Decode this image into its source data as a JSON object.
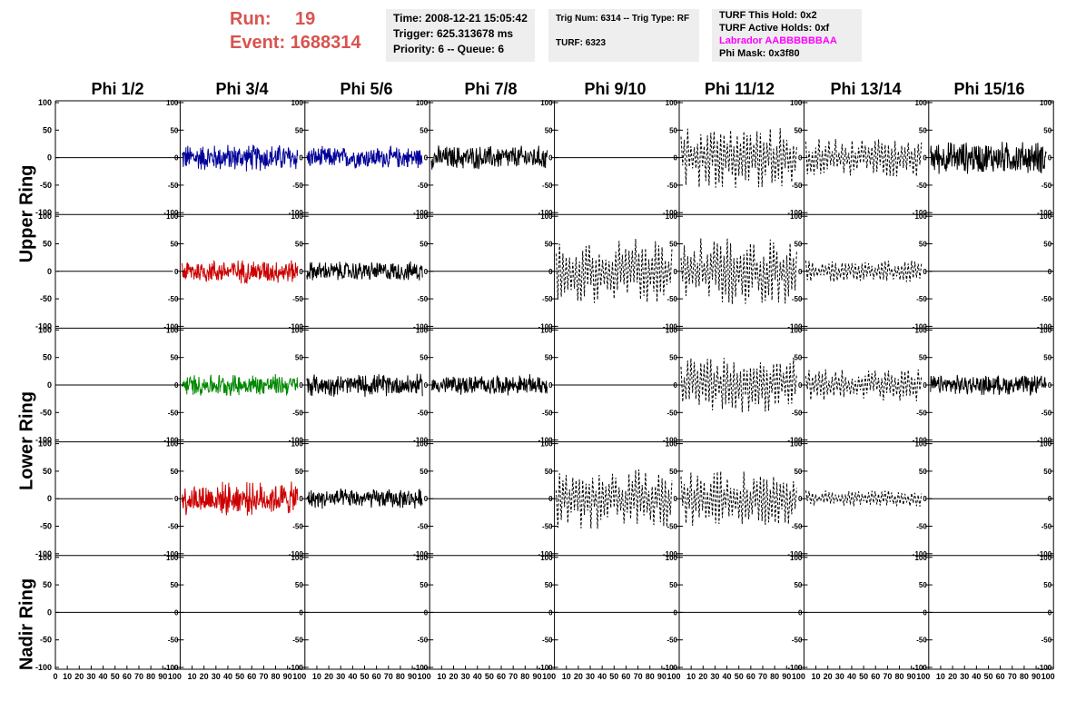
{
  "header": {
    "run_label": "Run:",
    "run_value": "19",
    "event_label": "Event:",
    "event_value": "1688314"
  },
  "info": {
    "time": "Time: 2008-12-21 15:05:42",
    "trigger": "Trigger: 625.313678 ms",
    "priority": "Priority: 6 -- Queue: 6",
    "trig_num": "Trig Num: 6314 -- Trig Type: RF",
    "turf": "TURF: 6323",
    "turf_hold": "TURF This Hold: 0x2",
    "turf_active": "TURF Active Holds: 0xf",
    "labrador": "Labrador AABBBBBBAA",
    "phi_mask": "Phi Mask: 0x3f80"
  },
  "columns": [
    "Phi 1/2",
    "Phi 3/4",
    "Phi 5/6",
    "Phi 7/8",
    "Phi 9/10",
    "Phi 11/12",
    "Phi 13/14",
    "Phi 15/16"
  ],
  "row_groups": [
    "Upper Ring",
    "Lower Ring",
    "Nadir Ring"
  ],
  "y_ticks": [
    "100",
    "50",
    "0",
    "-50",
    "-100"
  ],
  "x_ticks": [
    "0",
    "10",
    "20",
    "30",
    "40",
    "50",
    "60",
    "70",
    "80",
    "90",
    "100"
  ],
  "colors": {
    "header_red": "#d9534f",
    "labrador_magenta": "#ff00ff",
    "blue": "#000099",
    "red": "#cc0000",
    "green": "#008800",
    "black": "#000000"
  },
  "panels": {
    "types": [
      [
        "flat",
        "solid",
        "solid",
        "solid",
        "flat",
        "dashed",
        "dashed",
        "solid"
      ],
      [
        "solid",
        "solid",
        "solid",
        "flat",
        "dashed",
        "dashed",
        "dashed",
        "flat"
      ],
      [
        "flat",
        "solid",
        "solid",
        "solid",
        "flat",
        "dashed",
        "dashed",
        "solid"
      ],
      [
        "solid",
        "solid",
        "solid",
        "flat",
        "dashed",
        "dashed",
        "dashed",
        "flat"
      ],
      [
        "flat",
        "flat",
        "flat",
        "flat",
        "flat",
        "flat",
        "flat",
        "flat"
      ]
    ],
    "colors": [
      [
        "black",
        "blue",
        "blue",
        "black",
        "black",
        "black",
        "black",
        "black"
      ],
      [
        "black",
        "red",
        "black",
        "black",
        "black",
        "black",
        "black",
        "black"
      ],
      [
        "black",
        "green",
        "black",
        "black",
        "black",
        "black",
        "black",
        "black"
      ],
      [
        "black",
        "red",
        "black",
        "black",
        "black",
        "black",
        "black",
        "black"
      ],
      [
        "black",
        "black",
        "black",
        "black",
        "black",
        "black",
        "black",
        "black"
      ]
    ],
    "amplitudes": [
      [
        0,
        25,
        20,
        22,
        0,
        55,
        35,
        30
      ],
      [
        0,
        22,
        18,
        0,
        60,
        60,
        20,
        0
      ],
      [
        0,
        20,
        20,
        18,
        0,
        50,
        30,
        18
      ],
      [
        0,
        30,
        18,
        0,
        55,
        50,
        15,
        0
      ],
      [
        0,
        0,
        0,
        0,
        0,
        0,
        0,
        0
      ]
    ]
  }
}
